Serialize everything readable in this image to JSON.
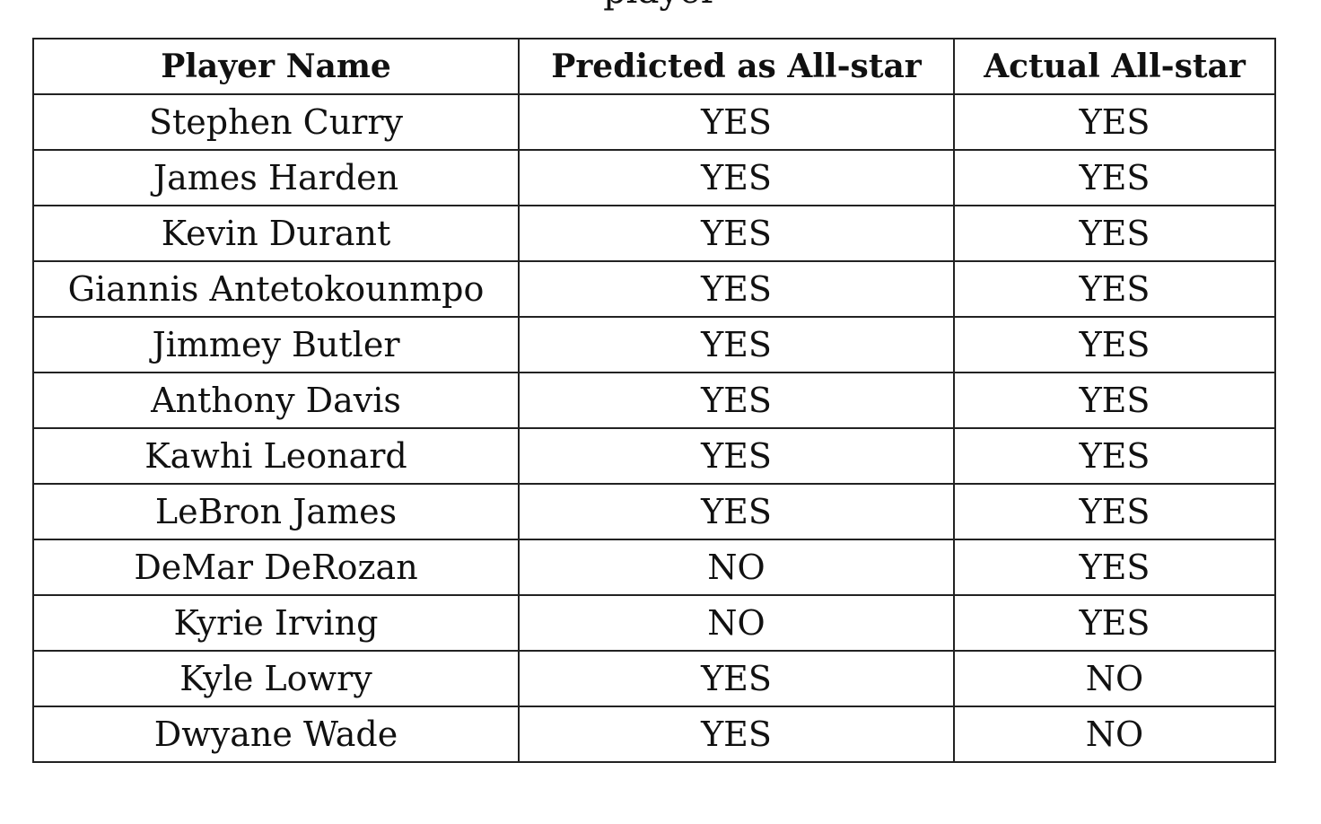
{
  "caption_fragment": "player",
  "table": {
    "headers": [
      "Player Name",
      "Predicted as All-star",
      "Actual All-star"
    ],
    "rows": [
      {
        "player": "Stephen Curry",
        "predicted": "YES",
        "actual": "YES"
      },
      {
        "player": "James Harden",
        "predicted": "YES",
        "actual": "YES"
      },
      {
        "player": "Kevin Durant",
        "predicted": "YES",
        "actual": "YES"
      },
      {
        "player": "Giannis Antetokounmpo",
        "predicted": "YES",
        "actual": "YES"
      },
      {
        "player": "Jimmey Butler",
        "predicted": "YES",
        "actual": "YES"
      },
      {
        "player": "Anthony Davis",
        "predicted": "YES",
        "actual": "YES"
      },
      {
        "player": "Kawhi Leonard",
        "predicted": "YES",
        "actual": "YES"
      },
      {
        "player": "LeBron James",
        "predicted": "YES",
        "actual": "YES"
      },
      {
        "player": "DeMar DeRozan",
        "predicted": "NO",
        "actual": "YES"
      },
      {
        "player": "Kyrie Irving",
        "predicted": "NO",
        "actual": "YES"
      },
      {
        "player": "Kyle Lowry",
        "predicted": "YES",
        "actual": "NO"
      },
      {
        "player": "Dwyane Wade",
        "predicted": "YES",
        "actual": "NO"
      }
    ]
  }
}
